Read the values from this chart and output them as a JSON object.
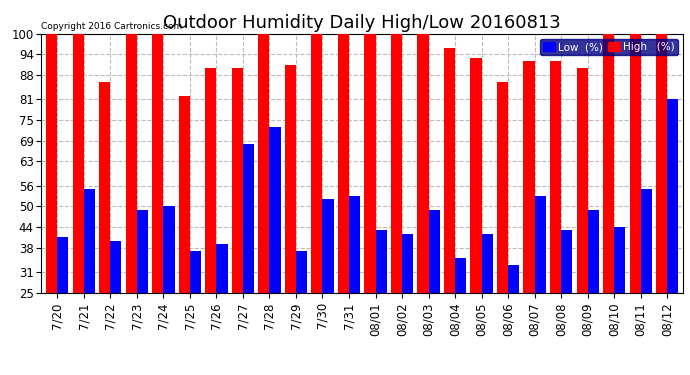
{
  "title": "Outdoor Humidity Daily High/Low 20160813",
  "copyright": "Copyright 2016 Cartronics.com",
  "categories": [
    "7/20",
    "7/21",
    "7/22",
    "7/23",
    "7/24",
    "7/25",
    "7/26",
    "7/27",
    "7/28",
    "7/29",
    "7/30",
    "7/31",
    "08/01",
    "08/02",
    "08/03",
    "08/04",
    "08/05",
    "08/06",
    "08/07",
    "08/08",
    "08/09",
    "08/10",
    "08/11",
    "08/12"
  ],
  "high": [
    100,
    100,
    86,
    100,
    100,
    82,
    90,
    90,
    100,
    91,
    100,
    100,
    100,
    100,
    100,
    96,
    93,
    86,
    92,
    92,
    90,
    100,
    100,
    100
  ],
  "low": [
    41,
    55,
    40,
    49,
    50,
    37,
    39,
    68,
    73,
    37,
    52,
    53,
    43,
    42,
    49,
    35,
    42,
    33,
    53,
    43,
    49,
    44,
    55,
    81
  ],
  "bar_color_high": "#ff0000",
  "bar_color_low": "#0000ff",
  "bg_color": "#ffffff",
  "plot_bg_color": "#ffffff",
  "ylim_min": 25,
  "ylim_max": 100,
  "yticks": [
    25,
    31,
    38,
    44,
    50,
    56,
    63,
    69,
    75,
    81,
    88,
    94,
    100
  ],
  "grid_color": "#bbbbbb",
  "title_fontsize": 13,
  "tick_fontsize": 8.5,
  "legend_low_label": "Low  (%)",
  "legend_high_label": "High   (%)",
  "bar_width": 0.42
}
